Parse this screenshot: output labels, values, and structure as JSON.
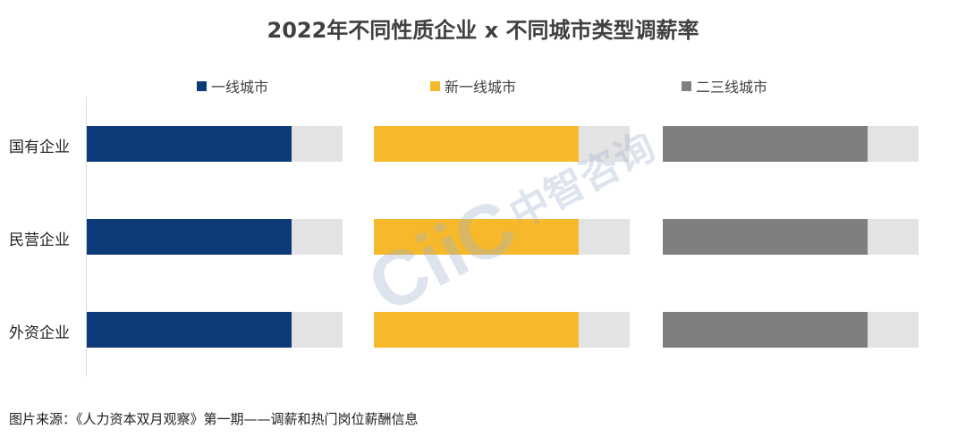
{
  "chart_data": {
    "type": "bar",
    "title": "2022年不同性质企业 x 不同城市类型调薪率",
    "categories": [
      "国有企业",
      "民营企业",
      "外资企业"
    ],
    "series": [
      {
        "name": "一线城市",
        "color": "#0d3b7a",
        "values": [
          0.8,
          0.8,
          0.8
        ]
      },
      {
        "name": "新一线城市",
        "color": "#f6b92b",
        "values": [
          0.8,
          0.8,
          0.8
        ]
      },
      {
        "name": "二三线城市",
        "color": "#7f7f7f",
        "values": [
          0.8,
          0.8,
          0.8
        ]
      }
    ],
    "xlim": [
      0,
      1
    ],
    "legend_position": "top",
    "track_color": "#e3e3e3",
    "grid": false
  },
  "source_note": "图片来源：《人力资本双月观察》第一期——调薪和热门岗位薪酬信息",
  "watermark": {
    "logo_text": "CIIC 中智咨询"
  }
}
